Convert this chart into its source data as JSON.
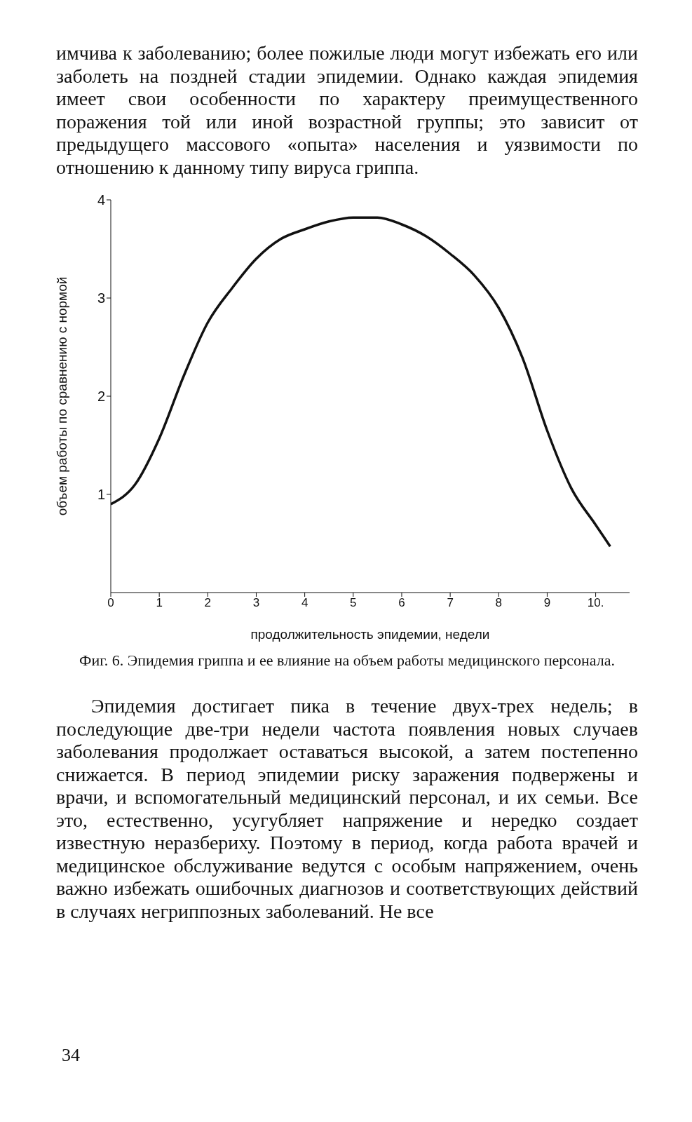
{
  "chart_data": {
    "type": "line",
    "title": "Фиг. 6. Эпидемия гриппа и ее влияние на объем работы медицинского персонала.",
    "xlabel": "продолжительность эпидемии, недели",
    "ylabel": "объем работы по сравнению с нормой",
    "x": [
      0,
      0.5,
      1,
      1.5,
      2,
      2.5,
      3,
      3.5,
      4,
      4.5,
      5,
      5.5,
      6,
      6.5,
      7,
      7.5,
      8,
      8.5,
      9,
      9.5,
      10,
      10.3
    ],
    "values": [
      0.9,
      1.1,
      1.57,
      2.2,
      2.75,
      3.1,
      3.4,
      3.6,
      3.7,
      3.78,
      3.82,
      3.82,
      3.75,
      3.63,
      3.45,
      3.23,
      2.9,
      2.38,
      1.65,
      1.06,
      0.69,
      0.47
    ],
    "color": "#111111",
    "xlim": [
      0,
      10.7
    ],
    "ylim": [
      0,
      4
    ],
    "xticks": [
      0,
      1,
      2,
      3,
      4,
      5,
      6,
      7,
      8,
      9,
      {
        "value": 10,
        "label": "10."
      }
    ],
    "yticks": [
      1,
      2,
      3,
      4
    ],
    "annotations": [
      "имчива к заболеванию; более пожилые люди могут избежать его или заболеть на поздней стадии эпидемии. Однако каждая эпидемия имеет свои особенности по характеру преимущественного поражения той или иной возрастной группы; это зависит от предыдущего массового «опыта» населения и уязвимости по отношению к данному типу вируса гриппа.",
      "Эпидемия достигает пика в течение двух-трех недель; в последующие две-три недели частота появления новых случаев заболевания продолжает оставаться высокой, а затем постепенно снижается. В период эпидемии риску заражения подвержены и врачи, и вспомогательный медицинский персонал, и их семьи. Все это, естественно, усугубляет напряжение и нередко создает известную неразбериху. Поэтому в период, когда работа врачей и медицинское обслуживание ведутся с особым напряжением, очень важно избежать ошибочных диагнозов и соответствующих действий в случаях негриппозных заболеваний. Не все",
      "34"
    ]
  }
}
